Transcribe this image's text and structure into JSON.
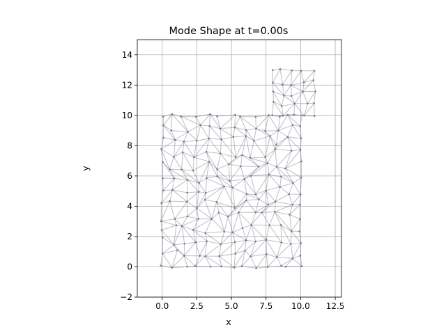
{
  "chart_data": {
    "type": "mesh",
    "title": "Mode Shape at t=0.00s",
    "xlabel": "x",
    "ylabel": "y",
    "xlim": [
      -1.8,
      12.95
    ],
    "ylim": [
      -2,
      15
    ],
    "xticks": [
      0.0,
      2.5,
      5.0,
      7.5,
      10.0,
      12.5
    ],
    "xtick_labels": [
      "0.0",
      "2.5",
      "5.0",
      "7.5",
      "10.0",
      "12.5"
    ],
    "yticks": [
      -2,
      0,
      2,
      4,
      6,
      8,
      10,
      12,
      14
    ],
    "ytick_labels": [
      "−2",
      "0",
      "2",
      "4",
      "6",
      "8",
      "10",
      "12",
      "14"
    ],
    "grid": true,
    "mesh_color": "#7a7a8a",
    "node_color": "#5a5a78",
    "outline": [
      [
        0,
        0
      ],
      [
        10,
        0
      ],
      [
        10,
        10
      ],
      [
        8,
        10
      ],
      [
        8,
        13
      ],
      [
        11,
        13
      ],
      [
        11,
        12
      ],
      [
        10,
        12
      ],
      [
        10,
        10
      ]
    ],
    "main_region": {
      "x": [
        0,
        10
      ],
      "y": [
        0,
        10
      ],
      "nx": 12,
      "ny": 12
    },
    "upper_region": {
      "x": [
        8,
        11
      ],
      "y": [
        10,
        13
      ],
      "nx": 4,
      "ny": 4
    }
  }
}
